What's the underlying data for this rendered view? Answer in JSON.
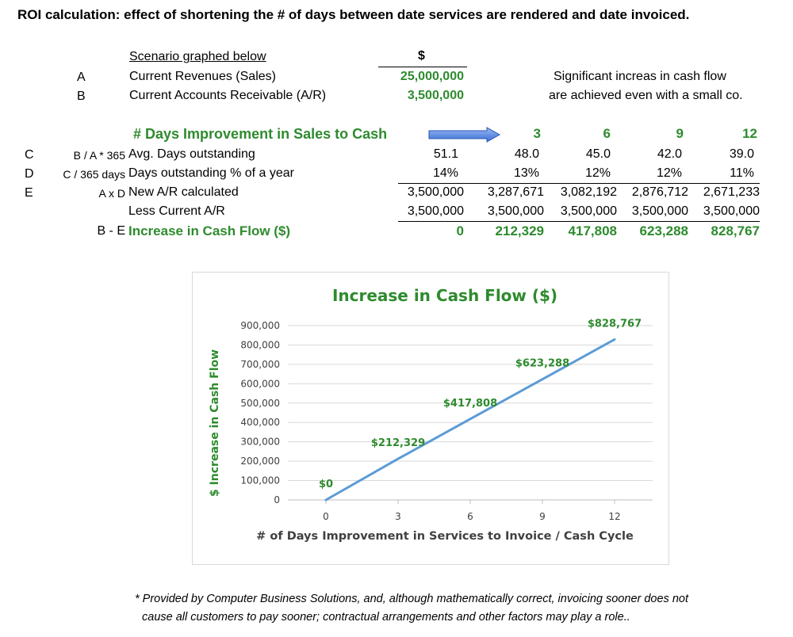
{
  "title": "ROI calculation: effect of shortening the # of days between date services are rendered and date invoiced.",
  "scenario": {
    "header_label": "Scenario graphed below",
    "header_currency": "$",
    "rows": [
      {
        "letter": "A",
        "label": "Current Revenues (Sales)",
        "value": "25,000,000"
      },
      {
        "letter": "B",
        "label": "Current Accounts Receivable (A/R)",
        "value": "3,500,000"
      }
    ],
    "note_line1": "Significant increas in cash flow",
    "note_line2": "are achieved even with a small co."
  },
  "improvement": {
    "label": "# Days Improvement in Sales to Cash",
    "days": [
      "3",
      "6",
      "9",
      "12"
    ]
  },
  "table": {
    "rows": [
      {
        "letter": "C",
        "formula": "B / A * 365",
        "label": "Avg. Days outstanding",
        "values": [
          "51.1",
          "48.0",
          "45.0",
          "42.0",
          "39.0"
        ]
      },
      {
        "letter": "D",
        "formula": "C / 365 days",
        "label": "Days outstanding % of a year",
        "values": [
          "14%",
          "13%",
          "12%",
          "12%",
          "11%"
        ]
      },
      {
        "letter": "E",
        "formula": "A x D",
        "label": "New A/R calculated",
        "values": [
          "3,500,000",
          "3,287,671",
          "3,082,192",
          "2,876,712",
          "2,671,233"
        ]
      },
      {
        "letter": "",
        "formula": "",
        "label": "Less Current A/R",
        "values": [
          "3,500,000",
          "3,500,000",
          "3,500,000",
          "3,500,000",
          "3,500,000"
        ]
      }
    ],
    "total": {
      "formula": "B - E",
      "label": "Increase in Cash Flow ($)",
      "values": [
        "0",
        "212,329",
        "417,808",
        "623,288",
        "828,767"
      ]
    }
  },
  "chart_data": {
    "type": "line",
    "title": "Increase in Cash Flow ($)",
    "xlabel": "# of Days Improvement in Services to Invoice / Cash Cycle",
    "ylabel": "$ Increase in Cash Flow",
    "x": [
      0,
      3,
      6,
      9,
      12
    ],
    "x_ticks": [
      "0",
      "3",
      "6",
      "9",
      "12"
    ],
    "y_ticks": [
      "0",
      "100,000",
      "200,000",
      "300,000",
      "400,000",
      "500,000",
      "600,000",
      "700,000",
      "800,000",
      "900,000"
    ],
    "ylim": [
      0,
      900000
    ],
    "xlim": [
      0,
      12
    ],
    "grid": true,
    "series": [
      {
        "values": [
          0,
          212329,
          417808,
          623288,
          828767
        ],
        "labels": [
          "$0",
          "$212,329",
          "$417,808",
          "$623,288",
          "$828,767"
        ]
      }
    ],
    "colors": {
      "line": "#5b9bd5",
      "title": "#2e8b2e",
      "axis_text": "#404040",
      "grid": "#d9d9d9"
    }
  },
  "footnote": {
    "line1": "* Provided by Computer Business Solutions, and, although mathematically correct, invoicing sooner does not",
    "line2": "cause all customers to pay sooner; contractual arrangements and other factors may play a role.."
  }
}
